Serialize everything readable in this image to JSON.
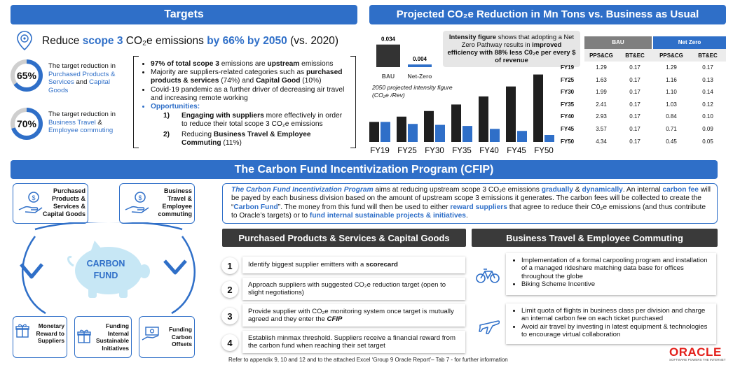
{
  "colors": {
    "primary_blue": "#2f6fc8",
    "dark_gray": "#3a3a3a",
    "bar_black": "#1f1f1f",
    "oracle_red": "#e3201b"
  },
  "targets": {
    "title": "Targets",
    "headline_pre": "Reduce ",
    "headline_scope": "scope 3",
    "headline_mid": " CO₂e emissions ",
    "headline_pct": "by 66% by 2050",
    "headline_post": " (vs. 2020)",
    "ring1": {
      "value": "65%",
      "fraction": 0.65,
      "text_pre": "The target reduction in ",
      "text_a": "Purchased Products & Services",
      "text_mid": " and ",
      "text_b": "Capital Goods"
    },
    "ring2": {
      "value": "70%",
      "fraction": 0.7,
      "text_pre": "The target reduction in ",
      "text_a": "Business Travel",
      "text_mid": " & ",
      "text_b": "Employee commuting"
    },
    "bullets": {
      "b1_bold": "97% of total scope 3",
      "b1_mid": " emissions are ",
      "b1_bold2": "upstream",
      "b1_post": " emissions",
      "b2_pre": "Majority are suppliers-related categories such as ",
      "b2_bold": "purchased products & services",
      "b2_mid": " (74%) and ",
      "b2_bold2": "Capital Good",
      "b2_post": " (10%)",
      "b3": "Covid-19 pandemic as a further driver of decreasing air travel and increasing remote working",
      "opp_label": "Opportunities:",
      "o1_num": "1)",
      "o1_bold": "Engaging with suppliers",
      "o1_post": " more effectively in order to reduce their total scope 3 CO₂e emissions",
      "o2_num": "2)",
      "o2_pre": "Reducing ",
      "o2_bold": "Business Travel & Employee Commuting",
      "o2_post": " (11%)"
    }
  },
  "projection": {
    "title": "Projected CO₂e Reduction in Mn Tons vs. Business as Usual",
    "callout_bold1": "Intensity figure",
    "callout_mid": " shows that adopting a Net Zero Pathway results in ",
    "callout_bold2": "improved efficiency with 88% less C0₂e per every $ of revenue",
    "intensity_caption": "2050 projected intensity figure (CO₂e /Rev)",
    "table": {
      "group_bau": "BAU",
      "group_nz": "Net Zero",
      "col_headers": [
        "PPS&CG",
        "BT&EC",
        "PPS&CG",
        "BT&EC"
      ],
      "rows": [
        {
          "year": "FY19",
          "vals": [
            "1.29",
            "0.17",
            "1.29",
            "0.17"
          ]
        },
        {
          "year": "FY25",
          "vals": [
            "1.63",
            "0.17",
            "1.16",
            "0.13"
          ]
        },
        {
          "year": "FY30",
          "vals": [
            "1.99",
            "0.17",
            "1.10",
            "0.14"
          ]
        },
        {
          "year": "FY35",
          "vals": [
            "2.41",
            "0.17",
            "1.03",
            "0.12"
          ]
        },
        {
          "year": "FY40",
          "vals": [
            "2.93",
            "0.17",
            "0.84",
            "0.10"
          ]
        },
        {
          "year": "FY45",
          "vals": [
            "3.57",
            "0.17",
            "0.71",
            "0.09"
          ]
        },
        {
          "year": "FY50",
          "vals": [
            "4.34",
            "0.17",
            "0.45",
            "0.05"
          ]
        }
      ]
    }
  },
  "chart_data": [
    {
      "type": "bar",
      "categories": [
        "BAU",
        "Net-Zero"
      ],
      "values": [
        0.034,
        0.004
      ],
      "data_labels": [
        "0.034",
        "0.004"
      ],
      "colors": [
        "#333333",
        "#2f6fc8"
      ],
      "ylim": [
        0,
        0.04
      ]
    },
    {
      "type": "bar",
      "categories": [
        "FY19",
        "FY25",
        "FY30",
        "FY35",
        "FY40",
        "FY45",
        "FY50"
      ],
      "series": [
        {
          "values": [
            1.29,
            1.63,
            1.99,
            2.41,
            2.93,
            3.57,
            4.34
          ],
          "color": "#1f1f1f"
        },
        {
          "values": [
            1.29,
            1.16,
            1.1,
            1.03,
            0.84,
            0.71,
            0.45
          ],
          "color": "#2f6fc8"
        }
      ],
      "ylim": [
        0,
        4.5
      ]
    }
  ],
  "cfip": {
    "title": "The Carbon Fund Incentivization Program (CFIP)",
    "intro": {
      "s1_bi": "The Carbon Fund Incentivization Program",
      "s1": " aims at reducing upstream scope 3 CO₂e emissions ",
      "s1_b1": "gradually",
      "s1_amp": " & ",
      "s1_b2": "dynamically",
      "s1_end": ". An internal ",
      "s2_b": "carbon fee",
      "s2": " will be payed by each business division based on the amount of upstream scope 3 emissions it generates. The carbon fees will be collected to create the “",
      "s2_b2": "Carbon Fund",
      "s2_end": "”. The money from this fund will then be used to either ",
      "s3_b": "reward suppliers",
      "s3": " that agree to reduce their C0₂e emissions (and thus contribute to Oracle’s targets) or to ",
      "s3_b2": "fund internal sustainable projects & initiatives",
      "s3_end": "."
    },
    "cycle": {
      "center": "CARBON FUND",
      "top_left": "Purchased Products & Services & Capital Goods",
      "top_right": "Business Travel & Employee commuting",
      "bottom_left": "Monetary Reward to Suppliers",
      "bottom_mid": "Funding Internal Sustainable Initiatives",
      "bottom_right": "Funding Carbon Offsets"
    },
    "pps_title": "Purchased Products & Services & Capital Goods",
    "bt_title": "Business Travel & Employee Commuting",
    "steps": [
      {
        "num": "1",
        "pre": "Identify biggest supplier emitters with a ",
        "bold": "scorecard",
        "post": ""
      },
      {
        "num": "2",
        "pre": "Approach suppliers with suggested CO₂e reduction target (open to slight negotiations)",
        "bold": "",
        "post": ""
      },
      {
        "num": "3",
        "pre": "Provide supplier with CO₂e monitoring system once target is mutually agreed and they enter the ",
        "bold": "CFIP",
        "post": ""
      },
      {
        "num": "4",
        "pre": "Establish minmax threshold. Suppliers receive a financial reward from the carbon fund when reaching their set target",
        "bold": "",
        "post": ""
      }
    ],
    "bike_bullets": [
      "Implementation of a formal carpooling program and installation of a managed rideshare matching data base for offices throughout the globe",
      "Biking Scheme Incentive"
    ],
    "plane_bullets": [
      "Limit quota of flights in business class per division and charge an internal carbon fee on each ticket purchased",
      "Avoid air travel by investing in latest equipment & technologies to encourage virtual collaboration"
    ]
  },
  "footer": {
    "note": "Refer to appendix 9, 10 and 12 and to the attached Excel ‘Group 9 Oracle Report’– Tab 7 - for further information",
    "logo": "ORACLE",
    "logo_sub": "SOFTWARE POWERS THE INTERNET"
  }
}
